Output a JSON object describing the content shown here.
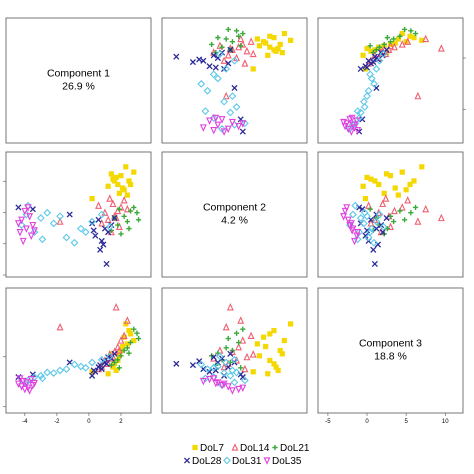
{
  "chart_data": {
    "type": "scatter",
    "layout": "scatterplot-matrix",
    "diagonal": [
      {
        "name": "Component 1",
        "value": "26.9 %"
      },
      {
        "name": "Component 2",
        "value": "4.2 %"
      },
      {
        "name": "Component 3",
        "value": "18.8 %"
      }
    ],
    "axes": {
      "c1": {
        "range": [
          -4.8,
          3.5
        ],
        "ticks": [
          -4,
          -2,
          0,
          2
        ]
      },
      "c2": {
        "range": [
          -3.2,
          3.2
        ],
        "ticks": []
      },
      "c3": {
        "range": [
          -5.5,
          11.5
        ],
        "ticks": [
          -5,
          0,
          5,
          10
        ]
      }
    },
    "colors": {
      "DoL7": "#f5d800",
      "DoL14": "#f06070",
      "DoL21": "#3aa83a",
      "DoL28": "#2a2a9a",
      "DoL31": "#5cc8e8",
      "DoL35": "#e040e0"
    },
    "legend": [
      {
        "label": "DoL7",
        "key": "DoL7",
        "marker": "square"
      },
      {
        "label": "DoL14",
        "key": "DoL14",
        "marker": "triangle"
      },
      {
        "label": "DoL21",
        "key": "DoL21",
        "marker": "plus"
      },
      {
        "label": "DoL28",
        "key": "DoL28",
        "marker": "x"
      },
      {
        "label": "DoL31",
        "key": "DoL31",
        "marker": "diamond"
      },
      {
        "label": "DoL35",
        "key": "DoL35",
        "marker": "tri-down"
      }
    ],
    "series": [
      {
        "name": "DoL7",
        "points": [
          [
            1.8,
            1.7,
            1.5
          ],
          [
            2.0,
            2.2,
            3.0
          ],
          [
            2.2,
            1.4,
            5.0
          ],
          [
            1.5,
            2.0,
            0.5
          ],
          [
            2.5,
            1.9,
            6.0
          ],
          [
            1.2,
            1.6,
            -0.5
          ],
          [
            2.8,
            2.4,
            4.5
          ],
          [
            1.9,
            1.2,
            2.2
          ],
          [
            2.3,
            2.7,
            7.0
          ],
          [
            1.6,
            1.9,
            1.0
          ],
          [
            2.1,
            1.5,
            3.6
          ],
          [
            1.4,
            2.3,
            2.5
          ],
          [
            2.6,
            1.7,
            5.5
          ],
          [
            1.7,
            2.1,
            0.0
          ],
          [
            2.4,
            1.1,
            4.0
          ],
          [
            0.2,
            0.9,
            -0.2
          ]
        ]
      },
      {
        "name": "DoL14",
        "points": [
          [
            1.5,
            0.6,
            2.0
          ],
          [
            1.8,
            0.2,
            3.5
          ],
          [
            1.2,
            -0.3,
            1.0
          ],
          [
            2.0,
            0.4,
            4.5
          ],
          [
            0.8,
            -0.5,
            0.5
          ],
          [
            1.6,
            -0.1,
            2.8
          ],
          [
            2.2,
            0.8,
            5.2
          ],
          [
            1.0,
            0.1,
            1.5
          ],
          [
            1.9,
            -0.7,
            3.0
          ],
          [
            0.6,
            0.5,
            0.2
          ],
          [
            1.3,
            0.9,
            2.4
          ],
          [
            1.7,
            -0.2,
            9.5
          ],
          [
            -1.8,
            -0.4,
            6.5
          ],
          [
            2.4,
            0.3,
            7.5
          ],
          [
            1.4,
            -1.0,
            1.8
          ]
        ]
      },
      {
        "name": "DoL21",
        "points": [
          [
            2.2,
            -0.1,
            3.0
          ],
          [
            2.6,
            0.2,
            4.2
          ],
          [
            1.8,
            -0.6,
            1.6
          ],
          [
            3.0,
            0.1,
            5.6
          ],
          [
            1.4,
            -0.9,
            0.8
          ],
          [
            2.4,
            -0.4,
            3.4
          ],
          [
            2.8,
            0.4,
            6.2
          ],
          [
            2.0,
            -1.1,
            2.2
          ],
          [
            1.6,
            -0.2,
            1.2
          ],
          [
            3.1,
            -0.3,
            4.8
          ],
          [
            2.5,
            -0.8,
            2.6
          ],
          [
            1.9,
            0.3,
            0.4
          ]
        ]
      },
      {
        "name": "DoL28",
        "points": [
          [
            0.6,
            -0.3,
            0.5
          ],
          [
            1.0,
            -0.8,
            1.2
          ],
          [
            0.4,
            -1.2,
            -0.2
          ],
          [
            1.4,
            -0.6,
            1.8
          ],
          [
            0.8,
            -1.5,
            0.2
          ],
          [
            0.2,
            -0.5,
            -0.8
          ],
          [
            1.2,
            -1.0,
            2.0
          ],
          [
            0.7,
            -2.0,
            0.8
          ],
          [
            1.6,
            -0.2,
            2.5
          ],
          [
            -4.4,
            0.4,
            -1.0
          ],
          [
            -3.5,
            0.3,
            -0.6
          ],
          [
            1.1,
            -2.8,
            1.0
          ],
          [
            -1.2,
            0.0,
            1.2
          ],
          [
            0.3,
            -0.9,
            0.0
          ],
          [
            0.9,
            -1.7,
            1.4
          ]
        ]
      },
      {
        "name": "DoL31",
        "points": [
          [
            -3.8,
            0.5,
            -1.5
          ],
          [
            -3.0,
            -0.2,
            -0.8
          ],
          [
            -4.2,
            -0.6,
            -2.2
          ],
          [
            -2.6,
            0.1,
            -0.3
          ],
          [
            -3.4,
            -1.0,
            -1.0
          ],
          [
            -0.5,
            -0.8,
            0.6
          ],
          [
            0.2,
            -0.4,
            1.2
          ],
          [
            -1.4,
            -1.3,
            0.2
          ],
          [
            0.8,
            0.0,
            1.6
          ],
          [
            -2.2,
            -0.5,
            -0.4
          ],
          [
            -0.9,
            -1.6,
            0.9
          ],
          [
            -3.9,
            0.0,
            -1.8
          ],
          [
            -0.2,
            -1.0,
            0.4
          ],
          [
            1.3,
            -0.7,
            2.1
          ],
          [
            -2.9,
            -1.4,
            -1.2
          ],
          [
            -1.8,
            -0.1,
            0.0
          ]
        ]
      },
      {
        "name": "DoL35",
        "points": [
          [
            -4.2,
            -0.3,
            -2.4
          ],
          [
            -3.9,
            -0.8,
            -1.8
          ],
          [
            -4.0,
            0.2,
            -2.8
          ],
          [
            -3.6,
            -1.2,
            -1.3
          ],
          [
            -4.4,
            -0.5,
            -2.0
          ],
          [
            -3.7,
            -0.1,
            -3.0
          ],
          [
            -4.1,
            -1.5,
            -1.6
          ],
          [
            -3.5,
            -0.6,
            -2.2
          ],
          [
            -4.3,
            -1.0,
            -1.2
          ],
          [
            -3.8,
            0.4,
            -2.6
          ],
          [
            -3.4,
            -0.9,
            -1.9
          ]
        ]
      }
    ]
  }
}
